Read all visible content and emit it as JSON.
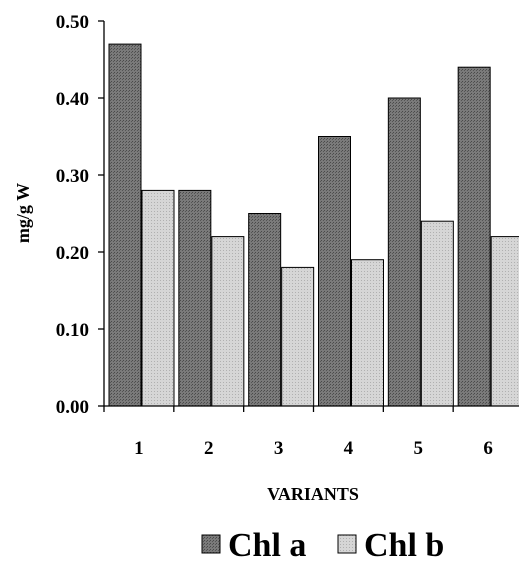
{
  "chart_data": {
    "type": "bar",
    "categories": [
      "1",
      "2",
      "3",
      "4",
      "5",
      "6"
    ],
    "series": [
      {
        "name": "Chl a",
        "values": [
          0.47,
          0.28,
          0.25,
          0.35,
          0.4,
          0.44
        ],
        "color": "#6e6e6e"
      },
      {
        "name": "Chl b",
        "values": [
          0.28,
          0.22,
          0.18,
          0.19,
          0.24,
          0.22
        ],
        "color": "#cfcfcf"
      }
    ],
    "xlabel": "VARIANTS",
    "ylabel": "mg/g W",
    "ylim": [
      0,
      0.5
    ],
    "yticks": [
      "0.00",
      "0.10",
      "0.20",
      "0.30",
      "0.40",
      "0.50"
    ],
    "grid": false,
    "legend_position": "bottom"
  }
}
